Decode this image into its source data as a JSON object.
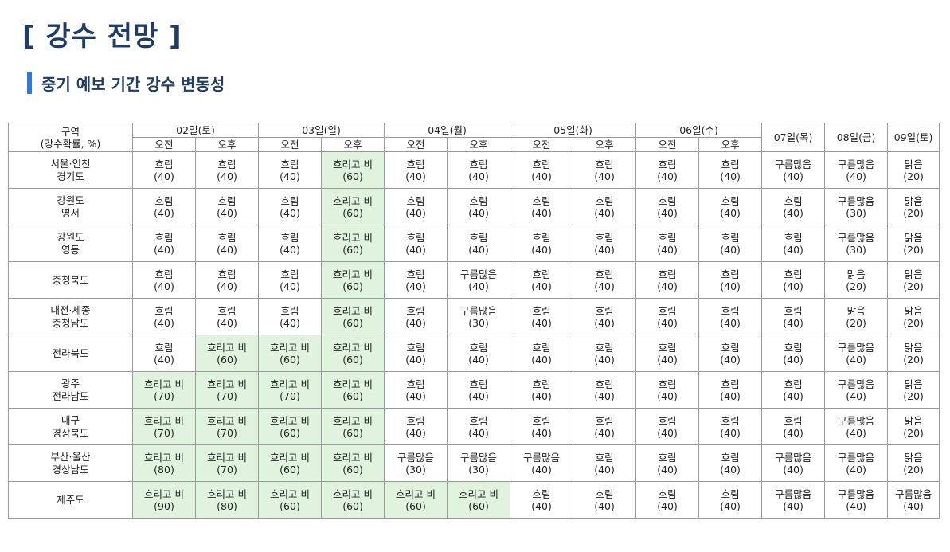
{
  "page": {
    "title": "[ 강수 전망 ]",
    "subtitle": "중기 예보 기간 강수 변동성"
  },
  "colors": {
    "rain_cell": "#dff3df",
    "subtitle_bar": "#2e7bd6",
    "title": "#1f3c66"
  },
  "table": {
    "region_header": {
      "line1": "구역",
      "line2": "(강수확률, %)"
    },
    "split_days": [
      {
        "label": "02일(토)",
        "am": "오전",
        "pm": "오후"
      },
      {
        "label": "03일(일)",
        "am": "오전",
        "pm": "오후"
      },
      {
        "label": "04일(월)",
        "am": "오전",
        "pm": "오후"
      },
      {
        "label": "05일(화)",
        "am": "오전",
        "pm": "오후"
      },
      {
        "label": "06일(수)",
        "am": "오전",
        "pm": "오후"
      }
    ],
    "single_days": [
      "07일(목)",
      "08일(금)",
      "09일(토)"
    ],
    "rows": [
      {
        "region1": "서울·인천",
        "region2": "경기도",
        "cells": [
          {
            "w": "흐림",
            "p": "(40)",
            "rain": false
          },
          {
            "w": "흐림",
            "p": "(40)",
            "rain": false
          },
          {
            "w": "흐림",
            "p": "(40)",
            "rain": false
          },
          {
            "w": "흐리고 비",
            "p": "(60)",
            "rain": true
          },
          {
            "w": "흐림",
            "p": "(40)",
            "rain": false
          },
          {
            "w": "흐림",
            "p": "(40)",
            "rain": false
          },
          {
            "w": "흐림",
            "p": "(40)",
            "rain": false
          },
          {
            "w": "흐림",
            "p": "(40)",
            "rain": false
          },
          {
            "w": "흐림",
            "p": "(40)",
            "rain": false
          },
          {
            "w": "흐림",
            "p": "(40)",
            "rain": false
          },
          {
            "w": "구름많음",
            "p": "(40)",
            "rain": false
          },
          {
            "w": "구름많음",
            "p": "(40)",
            "rain": false
          },
          {
            "w": "맑음",
            "p": "(20)",
            "rain": false
          }
        ]
      },
      {
        "region1": "강원도",
        "region2": "영서",
        "cells": [
          {
            "w": "흐림",
            "p": "(40)",
            "rain": false
          },
          {
            "w": "흐림",
            "p": "(40)",
            "rain": false
          },
          {
            "w": "흐림",
            "p": "(40)",
            "rain": false
          },
          {
            "w": "흐리고 비",
            "p": "(60)",
            "rain": true
          },
          {
            "w": "흐림",
            "p": "(40)",
            "rain": false
          },
          {
            "w": "흐림",
            "p": "(40)",
            "rain": false
          },
          {
            "w": "흐림",
            "p": "(40)",
            "rain": false
          },
          {
            "w": "흐림",
            "p": "(40)",
            "rain": false
          },
          {
            "w": "흐림",
            "p": "(40)",
            "rain": false
          },
          {
            "w": "흐림",
            "p": "(40)",
            "rain": false
          },
          {
            "w": "흐림",
            "p": "(40)",
            "rain": false
          },
          {
            "w": "구름많음",
            "p": "(30)",
            "rain": false
          },
          {
            "w": "맑음",
            "p": "(20)",
            "rain": false
          }
        ]
      },
      {
        "region1": "강원도",
        "region2": "영동",
        "cells": [
          {
            "w": "흐림",
            "p": "(40)",
            "rain": false
          },
          {
            "w": "흐림",
            "p": "(40)",
            "rain": false
          },
          {
            "w": "흐림",
            "p": "(40)",
            "rain": false
          },
          {
            "w": "흐리고 비",
            "p": "(60)",
            "rain": true
          },
          {
            "w": "흐림",
            "p": "(40)",
            "rain": false
          },
          {
            "w": "흐림",
            "p": "(40)",
            "rain": false
          },
          {
            "w": "흐림",
            "p": "(40)",
            "rain": false
          },
          {
            "w": "흐림",
            "p": "(40)",
            "rain": false
          },
          {
            "w": "흐림",
            "p": "(40)",
            "rain": false
          },
          {
            "w": "흐림",
            "p": "(40)",
            "rain": false
          },
          {
            "w": "흐림",
            "p": "(40)",
            "rain": false
          },
          {
            "w": "구름많음",
            "p": "(30)",
            "rain": false
          },
          {
            "w": "맑음",
            "p": "(20)",
            "rain": false
          }
        ]
      },
      {
        "region1": "충청북도",
        "region2": "",
        "cells": [
          {
            "w": "흐림",
            "p": "(40)",
            "rain": false
          },
          {
            "w": "흐림",
            "p": "(40)",
            "rain": false
          },
          {
            "w": "흐림",
            "p": "(40)",
            "rain": false
          },
          {
            "w": "흐리고 비",
            "p": "(60)",
            "rain": true
          },
          {
            "w": "흐림",
            "p": "(40)",
            "rain": false
          },
          {
            "w": "구름많음",
            "p": "(40)",
            "rain": false
          },
          {
            "w": "흐림",
            "p": "(40)",
            "rain": false
          },
          {
            "w": "흐림",
            "p": "(40)",
            "rain": false
          },
          {
            "w": "흐림",
            "p": "(40)",
            "rain": false
          },
          {
            "w": "흐림",
            "p": "(40)",
            "rain": false
          },
          {
            "w": "흐림",
            "p": "(40)",
            "rain": false
          },
          {
            "w": "맑음",
            "p": "(20)",
            "rain": false
          },
          {
            "w": "맑음",
            "p": "(20)",
            "rain": false
          }
        ]
      },
      {
        "region1": "대전·세종",
        "region2": "충청남도",
        "cells": [
          {
            "w": "흐림",
            "p": "(40)",
            "rain": false
          },
          {
            "w": "흐림",
            "p": "(40)",
            "rain": false
          },
          {
            "w": "흐림",
            "p": "(40)",
            "rain": false
          },
          {
            "w": "흐리고 비",
            "p": "(60)",
            "rain": true
          },
          {
            "w": "흐림",
            "p": "(40)",
            "rain": false
          },
          {
            "w": "구름많음",
            "p": "(30)",
            "rain": false
          },
          {
            "w": "흐림",
            "p": "(40)",
            "rain": false
          },
          {
            "w": "흐림",
            "p": "(40)",
            "rain": false
          },
          {
            "w": "흐림",
            "p": "(40)",
            "rain": false
          },
          {
            "w": "흐림",
            "p": "(40)",
            "rain": false
          },
          {
            "w": "흐림",
            "p": "(40)",
            "rain": false
          },
          {
            "w": "맑음",
            "p": "(20)",
            "rain": false
          },
          {
            "w": "맑음",
            "p": "(20)",
            "rain": false
          }
        ]
      },
      {
        "region1": "전라북도",
        "region2": "",
        "cells": [
          {
            "w": "흐림",
            "p": "(40)",
            "rain": false
          },
          {
            "w": "흐리고 비",
            "p": "(60)",
            "rain": true
          },
          {
            "w": "흐리고 비",
            "p": "(60)",
            "rain": true
          },
          {
            "w": "흐리고 비",
            "p": "(60)",
            "rain": true
          },
          {
            "w": "흐림",
            "p": "(40)",
            "rain": false
          },
          {
            "w": "흐림",
            "p": "(40)",
            "rain": false
          },
          {
            "w": "흐림",
            "p": "(40)",
            "rain": false
          },
          {
            "w": "흐림",
            "p": "(40)",
            "rain": false
          },
          {
            "w": "흐림",
            "p": "(40)",
            "rain": false
          },
          {
            "w": "흐림",
            "p": "(40)",
            "rain": false
          },
          {
            "w": "흐림",
            "p": "(40)",
            "rain": false
          },
          {
            "w": "구름많음",
            "p": "(40)",
            "rain": false
          },
          {
            "w": "맑음",
            "p": "(20)",
            "rain": false
          }
        ]
      },
      {
        "region1": "광주",
        "region2": "전라남도",
        "cells": [
          {
            "w": "흐리고 비",
            "p": "(70)",
            "rain": true
          },
          {
            "w": "흐리고 비",
            "p": "(70)",
            "rain": true
          },
          {
            "w": "흐리고 비",
            "p": "(70)",
            "rain": true
          },
          {
            "w": "흐리고 비",
            "p": "(60)",
            "rain": true
          },
          {
            "w": "흐림",
            "p": "(40)",
            "rain": false
          },
          {
            "w": "흐림",
            "p": "(40)",
            "rain": false
          },
          {
            "w": "흐림",
            "p": "(40)",
            "rain": false
          },
          {
            "w": "흐림",
            "p": "(40)",
            "rain": false
          },
          {
            "w": "흐림",
            "p": "(40)",
            "rain": false
          },
          {
            "w": "흐림",
            "p": "(40)",
            "rain": false
          },
          {
            "w": "흐림",
            "p": "(40)",
            "rain": false
          },
          {
            "w": "구름많음",
            "p": "(40)",
            "rain": false
          },
          {
            "w": "맑음",
            "p": "(20)",
            "rain": false
          }
        ]
      },
      {
        "region1": "대구",
        "region2": "경상북도",
        "cells": [
          {
            "w": "흐리고 비",
            "p": "(70)",
            "rain": true
          },
          {
            "w": "흐리고 비",
            "p": "(70)",
            "rain": true
          },
          {
            "w": "흐리고 비",
            "p": "(60)",
            "rain": true
          },
          {
            "w": "흐리고 비",
            "p": "(60)",
            "rain": true
          },
          {
            "w": "흐림",
            "p": "(40)",
            "rain": false
          },
          {
            "w": "흐림",
            "p": "(40)",
            "rain": false
          },
          {
            "w": "흐림",
            "p": "(40)",
            "rain": false
          },
          {
            "w": "흐림",
            "p": "(40)",
            "rain": false
          },
          {
            "w": "흐림",
            "p": "(40)",
            "rain": false
          },
          {
            "w": "흐림",
            "p": "(40)",
            "rain": false
          },
          {
            "w": "흐림",
            "p": "(40)",
            "rain": false
          },
          {
            "w": "구름많음",
            "p": "(40)",
            "rain": false
          },
          {
            "w": "맑음",
            "p": "(20)",
            "rain": false
          }
        ]
      },
      {
        "region1": "부산·울산",
        "region2": "경상남도",
        "cells": [
          {
            "w": "흐리고 비",
            "p": "(80)",
            "rain": true
          },
          {
            "w": "흐리고 비",
            "p": "(70)",
            "rain": true
          },
          {
            "w": "흐리고 비",
            "p": "(60)",
            "rain": true
          },
          {
            "w": "흐리고 비",
            "p": "(60)",
            "rain": true
          },
          {
            "w": "구름많음",
            "p": "(30)",
            "rain": false
          },
          {
            "w": "구름많음",
            "p": "(30)",
            "rain": false
          },
          {
            "w": "구름많음",
            "p": "(40)",
            "rain": false
          },
          {
            "w": "흐림",
            "p": "(40)",
            "rain": false
          },
          {
            "w": "흐림",
            "p": "(40)",
            "rain": false
          },
          {
            "w": "흐림",
            "p": "(40)",
            "rain": false
          },
          {
            "w": "구름많음",
            "p": "(40)",
            "rain": false
          },
          {
            "w": "구름많음",
            "p": "(40)",
            "rain": false
          },
          {
            "w": "맑음",
            "p": "(20)",
            "rain": false
          }
        ]
      },
      {
        "region1": "제주도",
        "region2": "",
        "cells": [
          {
            "w": "흐리고 비",
            "p": "(90)",
            "rain": true
          },
          {
            "w": "흐리고 비",
            "p": "(80)",
            "rain": true
          },
          {
            "w": "흐리고 비",
            "p": "(60)",
            "rain": true
          },
          {
            "w": "흐리고 비",
            "p": "(60)",
            "rain": true
          },
          {
            "w": "흐리고 비",
            "p": "(60)",
            "rain": true
          },
          {
            "w": "흐리고 비",
            "p": "(60)",
            "rain": true
          },
          {
            "w": "흐림",
            "p": "(40)",
            "rain": false
          },
          {
            "w": "흐림",
            "p": "(40)",
            "rain": false
          },
          {
            "w": "흐림",
            "p": "(40)",
            "rain": false
          },
          {
            "w": "흐림",
            "p": "(40)",
            "rain": false
          },
          {
            "w": "구름많음",
            "p": "(40)",
            "rain": false
          },
          {
            "w": "구름많음",
            "p": "(40)",
            "rain": false
          },
          {
            "w": "구름많음",
            "p": "(40)",
            "rain": false
          }
        ]
      }
    ]
  }
}
